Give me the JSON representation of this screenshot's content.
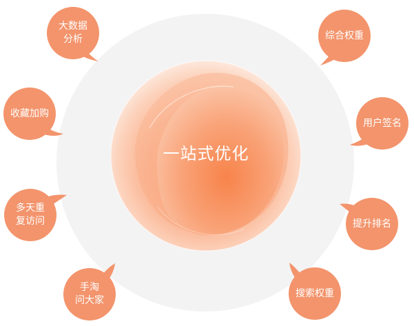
{
  "center": {
    "title": "一站式优化"
  },
  "colors": {
    "bubble": "#f3946c",
    "ring": "#f3f3f4",
    "orb_light": "#fde8dc",
    "orb_mid": "#fbb594",
    "orb_core": "#f7895a"
  },
  "bubbles": [
    {
      "label": "大数据\n分析"
    },
    {
      "label": "综合权重"
    },
    {
      "label": "收藏加购"
    },
    {
      "label": "用户签名"
    },
    {
      "label": "多天重\n复访问"
    },
    {
      "label": "提升排名"
    },
    {
      "label": "手淘\n问大家"
    },
    {
      "label": "搜索权重"
    }
  ]
}
